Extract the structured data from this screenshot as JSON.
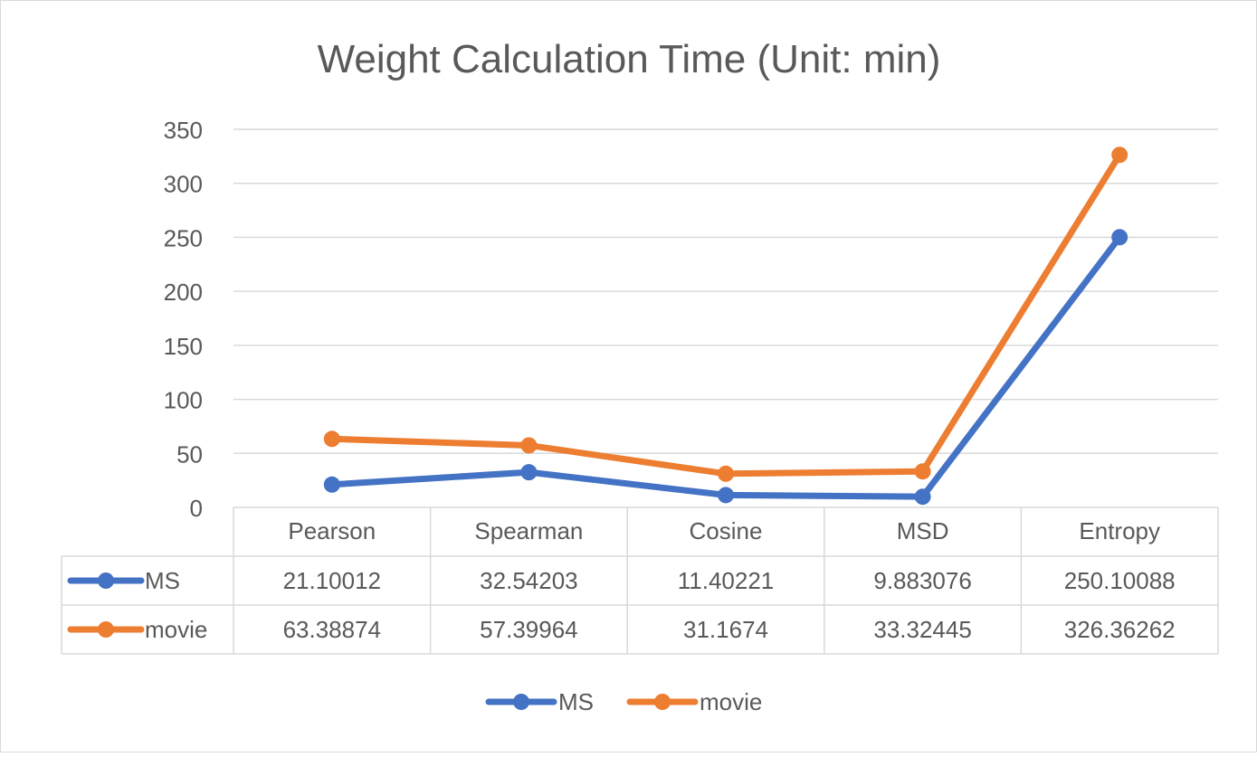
{
  "chart_data": {
    "type": "line",
    "title": "Weight Calculation Time (Unit: min)",
    "xlabel": "",
    "ylabel": "",
    "ylim": [
      0,
      350
    ],
    "yticks": [
      0,
      50,
      100,
      150,
      200,
      250,
      300,
      350
    ],
    "grid": true,
    "legend": "bottom",
    "data_table": true,
    "categories": [
      "Pearson",
      "Spearman",
      "Cosine",
      "MSD",
      "Entropy"
    ],
    "series": [
      {
        "name": "MS",
        "color": "#4472c4",
        "values": [
          21.10012,
          32.54203,
          11.40221,
          9.883076,
          250.10088
        ],
        "labels": [
          "21.10012",
          "32.54203",
          "11.40221",
          "9.883076",
          "250.10088"
        ]
      },
      {
        "name": "movie",
        "color": "#ed7d31",
        "values": [
          63.38874,
          57.39964,
          31.1674,
          33.32445,
          326.36262
        ],
        "labels": [
          "63.38874",
          "57.39964",
          "31.1674",
          "33.32445",
          "326.36262"
        ]
      }
    ]
  }
}
